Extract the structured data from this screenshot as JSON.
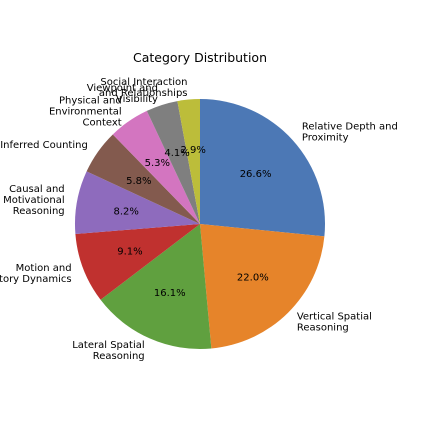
{
  "chart_data": {
    "type": "pie",
    "title": "Category Distribution",
    "start_angle_deg": 90,
    "direction": "clockwise",
    "slices": [
      {
        "label": "Relative Depth and\nProximity",
        "value": 26.6,
        "pct_text": "26.6%",
        "color": "#4c78b5"
      },
      {
        "label": "Vertical Spatial\nReasoning",
        "value": 22.0,
        "pct_text": "22.0%",
        "color": "#e6842a"
      },
      {
        "label": "Lateral Spatial\nReasoning",
        "value": 16.1,
        "pct_text": "16.1%",
        "color": "#60a03f"
      },
      {
        "label": "Motion and\nTrajectory Dynamics",
        "value": 9.1,
        "pct_text": "9.1%",
        "color": "#c0312f"
      },
      {
        "label": "Causal and\nMotivational\nReasoning",
        "value": 8.2,
        "pct_text": "8.2%",
        "color": "#8e6bbd"
      },
      {
        "label": "Inferred Counting",
        "value": 5.8,
        "pct_text": "5.8%",
        "color": "#835a4e"
      },
      {
        "label": "Physical and\nEnvironmental\nContext",
        "value": 5.3,
        "pct_text": "5.3%",
        "color": "#d375c0"
      },
      {
        "label": "Viewpoint and\nVisibility",
        "value": 4.1,
        "pct_text": "4.1%",
        "color": "#7f7f7f"
      },
      {
        "label": "Social Interaction\nand Relationships",
        "value": 2.9,
        "pct_text": "2.9%",
        "color": "#bcbd3a"
      }
    ]
  }
}
